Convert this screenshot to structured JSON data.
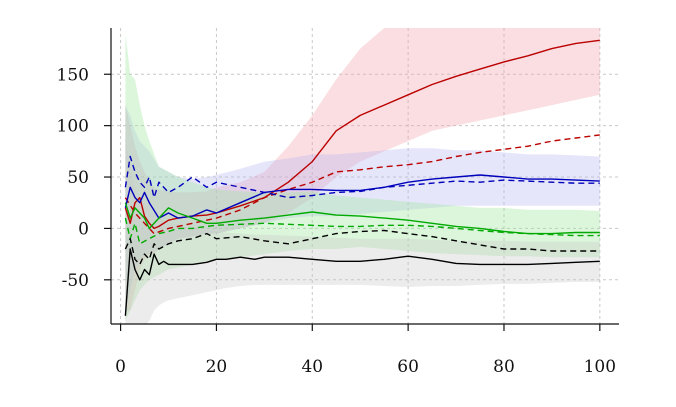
{
  "chart_data": {
    "type": "line",
    "title": "",
    "xlabel": "",
    "ylabel": "",
    "xlim": [
      -2,
      104
    ],
    "ylim": [
      -93,
      195
    ],
    "xticks": [
      0,
      20,
      40,
      60,
      80,
      100
    ],
    "yticks": [
      -50,
      0,
      50,
      100,
      150
    ],
    "xtick_labels": [
      "0",
      "20",
      "40",
      "60",
      "80",
      "100"
    ],
    "ytick_labels": [
      "-50",
      "0",
      "50",
      "100",
      "150"
    ],
    "grid": true,
    "legend": "none",
    "series": [
      {
        "color": "#bb0000",
        "line_style": "solid",
        "band_color": "#f0a0a8",
        "x": [
          1,
          2,
          3,
          4,
          5,
          6,
          7,
          8,
          10,
          12,
          15,
          18,
          20,
          25,
          30,
          35,
          40,
          45,
          50,
          55,
          60,
          65,
          70,
          75,
          80,
          85,
          90,
          95,
          100
        ],
        "y": [
          20,
          5,
          25,
          30,
          12,
          5,
          0,
          2,
          8,
          10,
          12,
          13,
          15,
          22,
          30,
          45,
          65,
          95,
          110,
          120,
          130,
          140,
          148,
          155,
          162,
          168,
          175,
          180,
          183
        ],
        "band_upper": [
          120,
          100,
          80,
          65,
          55,
          45,
          40,
          38,
          36,
          35,
          35,
          36,
          40,
          45,
          55,
          80,
          110,
          145,
          175,
          195,
          200,
          200,
          200,
          200,
          200,
          200,
          200,
          200,
          200
        ],
        "band_lower": [
          -80,
          -80,
          -60,
          -40,
          -30,
          -25,
          -25,
          -20,
          -15,
          -10,
          -8,
          -5,
          -5,
          0,
          5,
          15,
          30,
          50,
          65,
          75,
          85,
          95,
          100,
          105,
          110,
          115,
          120,
          125,
          130
        ]
      },
      {
        "color": "#bb0000",
        "line_style": "dashed",
        "x": [
          1,
          3,
          5,
          7,
          10,
          15,
          20,
          25,
          30,
          35,
          40,
          45,
          50,
          55,
          60,
          65,
          70,
          75,
          80,
          85,
          90,
          95,
          100
        ],
        "y": [
          30,
          15,
          5,
          -5,
          0,
          5,
          10,
          18,
          30,
          38,
          45,
          55,
          57,
          60,
          62,
          65,
          70,
          74,
          77,
          80,
          85,
          88,
          91
        ]
      },
      {
        "color": "#0000bb",
        "line_style": "solid",
        "band_color": "#b8b8f4",
        "x": [
          1,
          2,
          3,
          4,
          5,
          6,
          8,
          10,
          12,
          15,
          18,
          20,
          25,
          30,
          35,
          40,
          45,
          50,
          55,
          60,
          65,
          70,
          75,
          80,
          85,
          90,
          95,
          100
        ],
        "y": [
          20,
          40,
          30,
          25,
          35,
          25,
          10,
          15,
          10,
          12,
          18,
          15,
          25,
          35,
          38,
          38,
          37,
          37,
          40,
          45,
          48,
          50,
          52,
          50,
          48,
          48,
          47,
          46
        ],
        "band_upper": [
          120,
          110,
          95,
          85,
          80,
          75,
          60,
          55,
          50,
          48,
          50,
          52,
          58,
          65,
          68,
          72,
          72,
          74,
          76,
          78,
          78,
          76,
          76,
          74,
          72,
          72,
          71,
          70
        ],
        "band_lower": [
          -80,
          -60,
          -40,
          -30,
          -25,
          -25,
          -20,
          -15,
          -10,
          -8,
          -5,
          -5,
          0,
          5,
          10,
          12,
          12,
          14,
          16,
          18,
          20,
          22,
          22,
          22,
          22,
          22,
          22,
          22
        ]
      },
      {
        "color": "#0000bb",
        "line_style": "dashed",
        "x": [
          1,
          2,
          3,
          4,
          5,
          6,
          7,
          8,
          10,
          12,
          15,
          18,
          20,
          25,
          30,
          35,
          40,
          45,
          50,
          55,
          60,
          65,
          70,
          75,
          80,
          85,
          90,
          95,
          100
        ],
        "y": [
          40,
          70,
          55,
          45,
          40,
          50,
          30,
          45,
          35,
          40,
          50,
          40,
          45,
          40,
          35,
          30,
          32,
          35,
          36,
          40,
          42,
          44,
          46,
          45,
          47,
          46,
          45,
          44,
          44
        ]
      },
      {
        "color": "#00aa00",
        "line_style": "solid",
        "band_color": "#9ce69c",
        "x": [
          1,
          2,
          3,
          4,
          5,
          6,
          8,
          10,
          12,
          15,
          18,
          20,
          25,
          30,
          35,
          40,
          45,
          50,
          55,
          60,
          65,
          70,
          75,
          80,
          85,
          90,
          95,
          100
        ],
        "y": [
          25,
          10,
          20,
          15,
          10,
          0,
          10,
          20,
          15,
          10,
          5,
          5,
          8,
          10,
          13,
          16,
          13,
          12,
          10,
          8,
          5,
          2,
          0,
          -3,
          -5,
          -5,
          -4,
          -4
        ],
        "band_upper": [
          190,
          150,
          145,
          120,
          100,
          85,
          60,
          55,
          50,
          45,
          40,
          38,
          36,
          35,
          35,
          36,
          32,
          30,
          28,
          26,
          24,
          22,
          20,
          20,
          18,
          18,
          18,
          17
        ],
        "band_lower": [
          -90,
          -80,
          -70,
          -60,
          -55,
          -50,
          -45,
          -40,
          -38,
          -35,
          -32,
          -30,
          -28,
          -25,
          -22,
          -20,
          -20,
          -18,
          -20,
          -22,
          -24,
          -25,
          -26,
          -27,
          -27,
          -28,
          -28,
          -28
        ]
      },
      {
        "color": "#00aa00",
        "line_style": "dashed",
        "x": [
          1,
          2,
          3,
          4,
          6,
          8,
          10,
          12,
          15,
          18,
          20,
          25,
          30,
          35,
          40,
          45,
          50,
          55,
          60,
          65,
          70,
          75,
          80,
          85,
          90,
          95,
          100
        ],
        "y": [
          10,
          -10,
          5,
          -15,
          -10,
          -5,
          -3,
          0,
          0,
          2,
          3,
          4,
          5,
          4,
          3,
          2,
          2,
          3,
          3,
          2,
          0,
          -2,
          -4,
          -5,
          -6,
          -7,
          -7
        ]
      },
      {
        "color": "#000000",
        "line_style": "solid",
        "band_color": "#c8c8c8",
        "x": [
          1,
          2,
          3,
          4,
          5,
          6,
          7,
          8,
          9,
          10,
          12,
          15,
          18,
          20,
          22,
          25,
          28,
          30,
          35,
          40,
          45,
          50,
          55,
          60,
          65,
          70,
          75,
          80,
          85,
          90,
          95,
          100
        ],
        "y": [
          -85,
          -20,
          -40,
          -50,
          -40,
          -45,
          -25,
          -35,
          -32,
          -35,
          -35,
          -35,
          -33,
          -30,
          -30,
          -28,
          -30,
          -28,
          -28,
          -30,
          -32,
          -32,
          -30,
          -27,
          -30,
          -34,
          -35,
          -35,
          -35,
          -34,
          -33,
          -32
        ],
        "band_upper": [
          90,
          60,
          40,
          30,
          25,
          20,
          15,
          10,
          8,
          5,
          3,
          0,
          -2,
          -3,
          -4,
          -5,
          -6,
          -6,
          -7,
          -8,
          -9,
          -10,
          -10,
          -10,
          -11,
          -12,
          -12,
          -12,
          -13,
          -13,
          -13,
          -13
        ],
        "band_lower": [
          -95,
          -95,
          -95,
          -95,
          -95,
          -90,
          -80,
          -75,
          -72,
          -70,
          -68,
          -65,
          -62,
          -60,
          -58,
          -56,
          -55,
          -55,
          -55,
          -55,
          -55,
          -55,
          -56,
          -57,
          -56,
          -56,
          -55,
          -54,
          -54,
          -53,
          -52,
          -52
        ]
      },
      {
        "color": "#000000",
        "line_style": "dashed",
        "x": [
          1,
          2,
          3,
          4,
          5,
          6,
          7,
          8,
          10,
          12,
          15,
          18,
          20,
          25,
          30,
          35,
          40,
          45,
          50,
          55,
          60,
          65,
          70,
          75,
          80,
          85,
          90,
          95,
          100
        ],
        "y": [
          -20,
          -10,
          -30,
          -35,
          -25,
          -30,
          -15,
          -20,
          -15,
          -12,
          -10,
          -5,
          -10,
          -8,
          -12,
          -15,
          -10,
          -5,
          -3,
          -2,
          -5,
          -8,
          -12,
          -16,
          -20,
          -20,
          -22,
          -22,
          -22
        ]
      }
    ]
  }
}
